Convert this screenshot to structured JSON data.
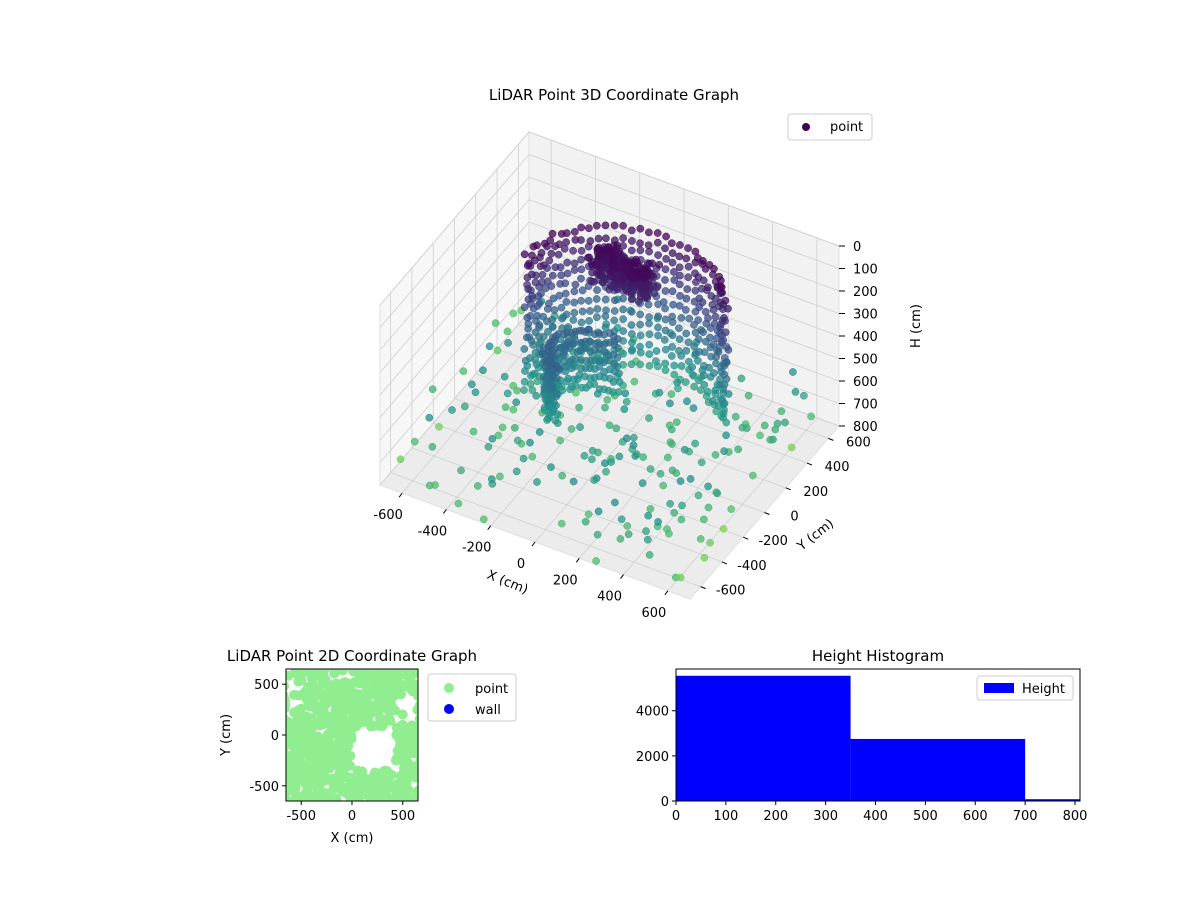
{
  "figure": {
    "bg_color": "#ffffff"
  },
  "chart_data": [
    {
      "type": "scatter3d",
      "title": "LiDAR Point 3D Coordinate Graph",
      "xlabel": "X (cm)",
      "ylabel": "Y (cm)",
      "zlabel": "H (cm)",
      "xlim": [
        -700,
        700
      ],
      "ylim": [
        -700,
        700
      ],
      "zlim": [
        800,
        0
      ],
      "x_ticks": [
        -600,
        -400,
        -200,
        0,
        200,
        400,
        600
      ],
      "y_ticks": [
        -600,
        -400,
        -200,
        0,
        200,
        400,
        600
      ],
      "z_ticks": [
        0,
        100,
        200,
        300,
        400,
        500,
        600,
        700,
        800
      ],
      "colormap": "viridis",
      "legend": {
        "placement": "top-right",
        "entries": [
          {
            "name": "point",
            "color": "#440154"
          }
        ]
      },
      "grid": true,
      "series": [
        {
          "name": "point",
          "description_points": [
            {
              "x": -600,
              "y": -600,
              "z": 800
            },
            {
              "x": 600,
              "y": 500,
              "z": 700
            },
            {
              "x": 0,
              "y": 0,
              "z": 300
            }
          ]
        }
      ]
    },
    {
      "type": "scatter",
      "title": "LiDAR Point 2D Coordinate Graph",
      "xlabel": "X (cm)",
      "ylabel": "Y (cm)",
      "xlim": [
        -650,
        650
      ],
      "ylim": [
        -650,
        650
      ],
      "x_ticks": [
        -500,
        0,
        500
      ],
      "y_ticks": [
        -500,
        0,
        500
      ],
      "legend": {
        "placement": "right-outside",
        "entries": [
          {
            "name": "point",
            "color": "#90ee90"
          },
          {
            "name": "wall",
            "color": "#0000ff"
          }
        ]
      },
      "grid": false
    },
    {
      "type": "bar",
      "title": "Height Histogram",
      "xlabel": "",
      "ylabel": "",
      "xlim": [
        0,
        810
      ],
      "ylim": [
        0,
        5850
      ],
      "x_ticks": [
        0,
        100,
        200,
        300,
        400,
        500,
        600,
        700,
        800
      ],
      "y_ticks": [
        0,
        2000,
        4000
      ],
      "bins": [
        {
          "start": 0,
          "end": 350,
          "count": 5550
        },
        {
          "start": 350,
          "end": 700,
          "count": 2750
        },
        {
          "start": 700,
          "end": 810,
          "count": 80
        }
      ],
      "bar_color": "#0000ff",
      "legend": {
        "placement": "top-right",
        "entries": [
          {
            "name": "Height",
            "color": "#0000ff"
          }
        ]
      },
      "grid": false
    }
  ]
}
